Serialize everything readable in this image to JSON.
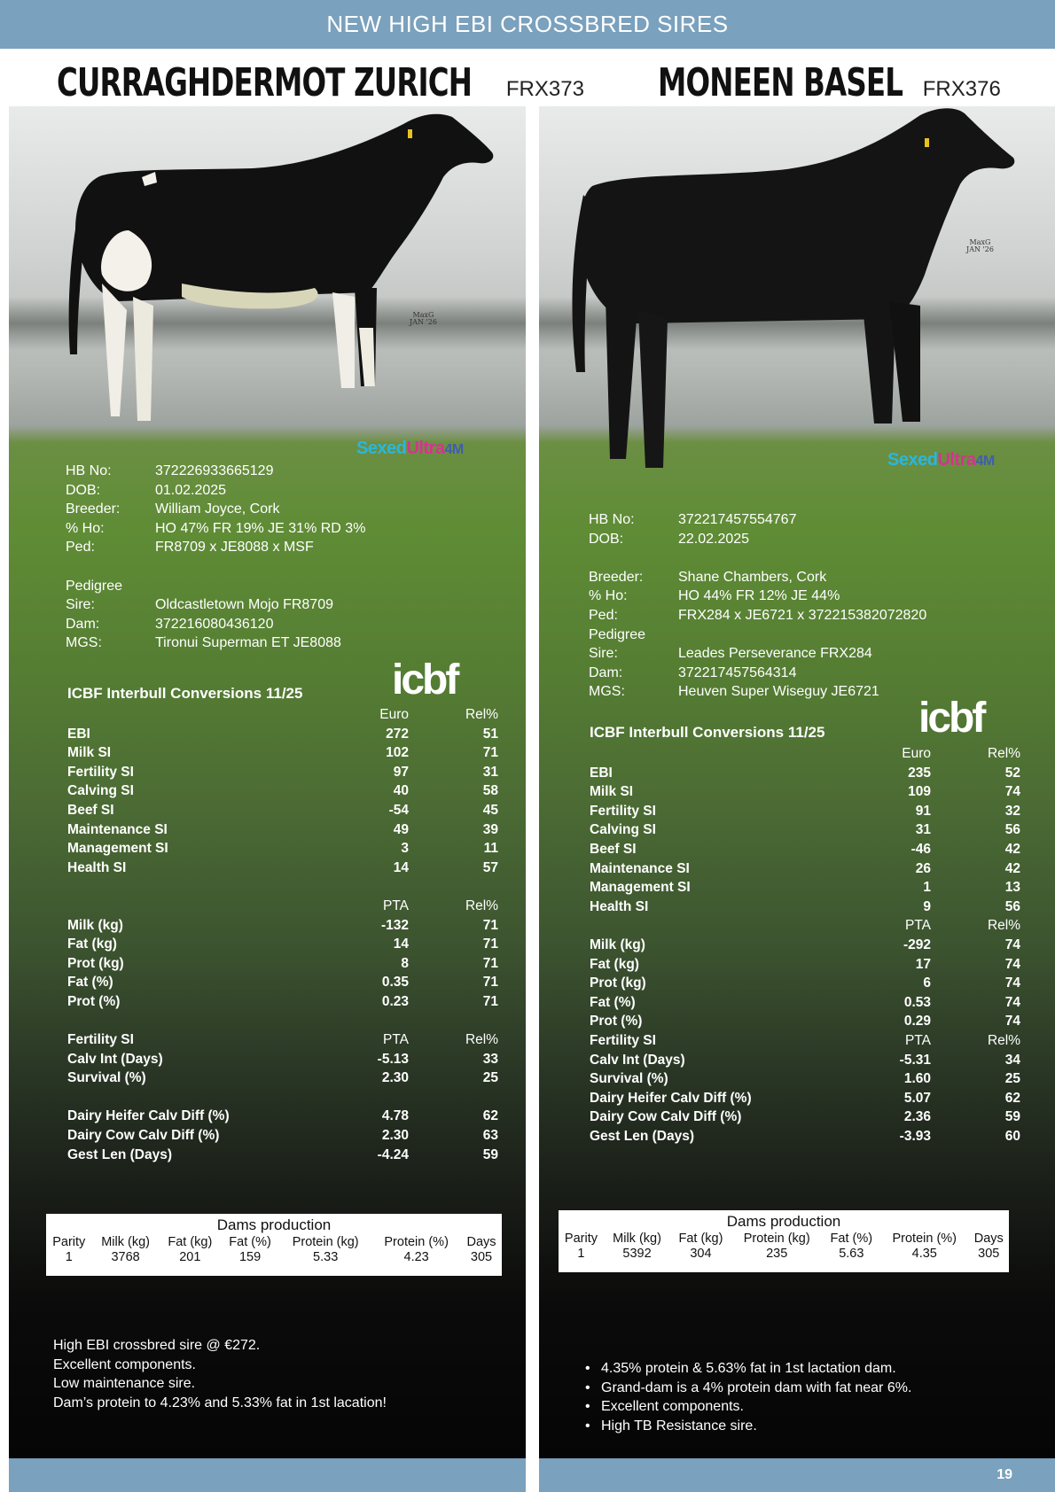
{
  "banner": "NEW HIGH EBI CROSSBRED SIRES",
  "page_number": "19",
  "sires": [
    {
      "name": "CURRAGHDERMOT ZURICH",
      "code": "FRX373",
      "watermark": [
        "MaxG",
        "JAN '26"
      ],
      "sexed_logo": [
        "Sexed",
        "Ultra",
        "4M"
      ],
      "info": [
        {
          "k": "HB No:",
          "v": "372226933665129"
        },
        {
          "k": "DOB:",
          "v": "01.02.2025"
        },
        {
          "k": "Breeder:",
          "v": "William Joyce, Cork"
        },
        {
          "k": "% Ho:",
          "v": "HO 47% FR 19% JE 31% RD 3%"
        },
        {
          "k": "Ped:",
          "v": "FR8709 x JE8088 x MSF"
        }
      ],
      "pedigree_label": "Pedigree",
      "pedigree": [
        {
          "k": "Sire:",
          "v": "Oldcastletown Mojo FR8709"
        },
        {
          "k": "Dam:",
          "v": "372216080436120"
        },
        {
          "k": "MGS:",
          "v": "Tironui Superman ET JE8088"
        }
      ],
      "icbf_logo": "icbf",
      "conversions_title": "ICBF Interbull Conversions 11/25",
      "index_head": {
        "m": "Euro",
        "r": "Rel%"
      },
      "index_rows": [
        {
          "l": "EBI",
          "m": "272",
          "r": "51"
        },
        {
          "l": "Milk SI",
          "m": "102",
          "r": "71"
        },
        {
          "l": "Fertility SI",
          "m": "97",
          "r": "31"
        },
        {
          "l": "Calving SI",
          "m": "40",
          "r": "58"
        },
        {
          "l": "Beef SI",
          "m": "-54",
          "r": "45"
        },
        {
          "l": "Maintenance SI",
          "m": "49",
          "r": "39"
        },
        {
          "l": "Management SI",
          "m": "3",
          "r": "11"
        },
        {
          "l": "Health SI",
          "m": "14",
          "r": "57"
        }
      ],
      "pta_head": {
        "m": "PTA",
        "r": "Rel%"
      },
      "pta_rows": [
        {
          "l": "Milk (kg)",
          "m": "-132",
          "r": "71"
        },
        {
          "l": "Fat (kg)",
          "m": "14",
          "r": "71"
        },
        {
          "l": "Prot (kg)",
          "m": "8",
          "r": "71"
        },
        {
          "l": "Fat (%)",
          "m": "0.35",
          "r": "71"
        },
        {
          "l": "Prot (%)",
          "m": "0.23",
          "r": "71"
        }
      ],
      "fert_head": {
        "l": "Fertility SI",
        "m": "PTA",
        "r": "Rel%"
      },
      "fert_rows": [
        {
          "l": "Calv Int (Days)",
          "m": "-5.13",
          "r": "33"
        },
        {
          "l": "Survival (%)",
          "m": "2.30",
          "r": "25"
        }
      ],
      "calv_rows": [
        {
          "l": "Dairy Heifer Calv Diff (%)",
          "m": "4.78",
          "r": "62"
        },
        {
          "l": "Dairy Cow Calv Diff (%)",
          "m": "2.30",
          "r": "63"
        },
        {
          "l": "Gest Len (Days)",
          "m": "-4.24",
          "r": "59"
        }
      ],
      "dams": {
        "title": "Dams production",
        "headers": [
          "Parity",
          "Milk (kg)",
          "Fat (kg)",
          "Fat (%)",
          "Protein (kg)",
          "Protein (%)",
          "Days"
        ],
        "values": [
          "1",
          "3768",
          "201",
          "159",
          "5.33",
          "4.23",
          "305"
        ]
      },
      "notes": [
        "High EBI crossbred sire @ €272.",
        "Excellent components.",
        "Low maintenance sire.",
        "Dam’s protein to 4.23% and 5.33% fat in 1st lacation!"
      ]
    },
    {
      "name": "MONEEN BASEL",
      "code": "FRX376",
      "watermark": [
        "MaxG",
        "JAN '26"
      ],
      "sexed_logo": [
        "Sexed",
        "Ultra",
        "4M"
      ],
      "info": [
        {
          "k": "HB No:",
          "v": "372217457554767"
        },
        {
          "k": "DOB:",
          "v": "22.02.2025"
        }
      ],
      "info2": [
        {
          "k": "Breeder:",
          "v": "Shane Chambers, Cork"
        },
        {
          "k": "% Ho:",
          "v": "HO 44% FR 12% JE 44%"
        },
        {
          "k": "Ped:",
          "v": "FRX284 x JE6721 x 372215382072820"
        }
      ],
      "pedigree_label": "Pedigree",
      "pedigree": [
        {
          "k": "Sire:",
          "v": "Leades Perseverance FRX284"
        },
        {
          "k": "Dam:",
          "v": "372217457564314"
        },
        {
          "k": "MGS:",
          "v": "Heuven Super Wiseguy JE6721"
        }
      ],
      "icbf_logo": "icbf",
      "conversions_title": "ICBF Interbull Conversions 11/25",
      "index_head": {
        "m": "Euro",
        "r": "Rel%"
      },
      "index_rows": [
        {
          "l": "EBI",
          "m": "235",
          "r": "52"
        },
        {
          "l": "Milk SI",
          "m": "109",
          "r": "74"
        },
        {
          "l": "Fertility SI",
          "m": "91",
          "r": "32"
        },
        {
          "l": "Calving SI",
          "m": "31",
          "r": "56"
        },
        {
          "l": "Beef SI",
          "m": "-46",
          "r": "42"
        },
        {
          "l": "Maintenance SI",
          "m": "26",
          "r": "42"
        },
        {
          "l": "Management SI",
          "m": "1",
          "r": "13"
        },
        {
          "l": "Health SI",
          "m": "9",
          "r": "56"
        }
      ],
      "pta_head": {
        "m": "PTA",
        "r": "Rel%"
      },
      "pta_rows": [
        {
          "l": "Milk (kg)",
          "m": "-292",
          "r": "74"
        },
        {
          "l": "Fat (kg)",
          "m": "17",
          "r": "74"
        },
        {
          "l": "Prot (kg)",
          "m": "6",
          "r": "74"
        },
        {
          "l": "Fat (%)",
          "m": "0.53",
          "r": "74"
        },
        {
          "l": "Prot (%)",
          "m": "0.29",
          "r": "74"
        }
      ],
      "fert_head": {
        "l": "Fertility SI",
        "m": "PTA",
        "r": "Rel%"
      },
      "fert_rows": [
        {
          "l": "Calv Int (Days)",
          "m": "-5.31",
          "r": "34"
        },
        {
          "l": "Survival (%)",
          "m": "1.60",
          "r": "25"
        },
        {
          "l": "Dairy Heifer Calv Diff (%)",
          "m": "5.07",
          "r": "62"
        },
        {
          "l": "Dairy Cow Calv Diff (%)",
          "m": "2.36",
          "r": "59"
        },
        {
          "l": "Gest Len (Days)",
          "m": "-3.93",
          "r": "60"
        }
      ],
      "dams": {
        "title": "Dams production",
        "headers": [
          "Parity",
          "Milk (kg)",
          "Fat (kg)",
          "Protein (kg)",
          "Fat (%)",
          "Protein (%)",
          "Days"
        ],
        "values": [
          "1",
          "5392",
          "304",
          "235",
          "5.63",
          "4.35",
          "305"
        ]
      },
      "notes": [
        "4.35% protein & 5.63% fat in 1st lactation dam.",
        "Grand-dam is a 4% protein dam with fat near 6%.",
        "Excellent components.",
        "High TB Resistance sire."
      ]
    }
  ]
}
